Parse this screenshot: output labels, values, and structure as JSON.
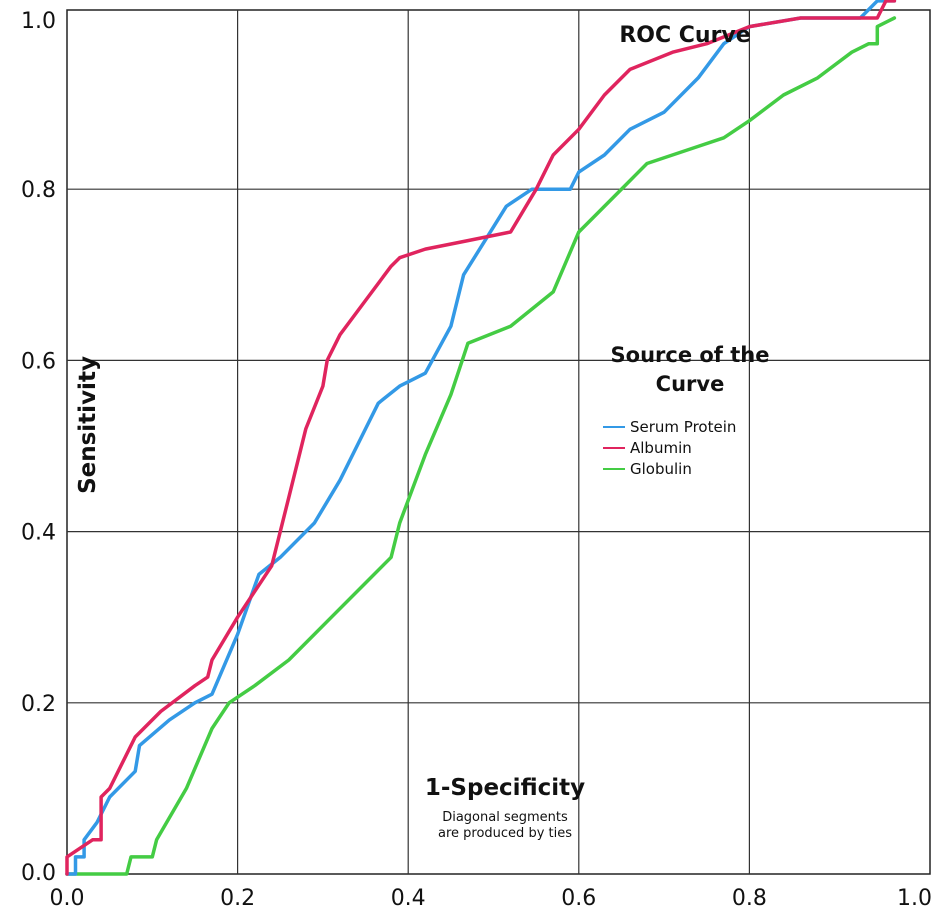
{
  "chart_data": {
    "type": "line",
    "title": "ROC Curve",
    "xlabel": "1-Specificity",
    "ylabel": "Sensitivity",
    "note_lines": [
      "Diagonal segments",
      "are produced by ties"
    ],
    "xlim": [
      0,
      1.0
    ],
    "ylim": [
      0,
      1.0
    ],
    "grid": true,
    "x_ticks": [
      {
        "value": 0.0,
        "label": "0.0"
      },
      {
        "value": 0.2,
        "label": "0.2"
      },
      {
        "value": 0.4,
        "label": "0.4"
      },
      {
        "value": 0.6,
        "label": "0.6"
      },
      {
        "value": 0.8,
        "label": "0.8"
      },
      {
        "value": 1.0,
        "label": "1.0"
      }
    ],
    "y_ticks": [
      {
        "value": 0.0,
        "label": "0.0"
      },
      {
        "value": 0.2,
        "label": "0.2"
      },
      {
        "value": 0.4,
        "label": "0.4"
      },
      {
        "value": 0.6,
        "label": "0.6"
      },
      {
        "value": 0.8,
        "label": "0.8"
      },
      {
        "value": 1.0,
        "label": "1.0"
      }
    ],
    "legend": {
      "title_lines": [
        "Source of the",
        "Curve"
      ],
      "placement": "right-middle"
    },
    "series": [
      {
        "name": "Serum Protein",
        "color": "#3399e6",
        "points": [
          [
            0.0,
            0.0
          ],
          [
            0.01,
            0.0
          ],
          [
            0.01,
            0.02
          ],
          [
            0.02,
            0.02
          ],
          [
            0.02,
            0.04
          ],
          [
            0.035,
            0.06
          ],
          [
            0.05,
            0.09
          ],
          [
            0.08,
            0.12
          ],
          [
            0.085,
            0.15
          ],
          [
            0.12,
            0.18
          ],
          [
            0.15,
            0.2
          ],
          [
            0.17,
            0.21
          ],
          [
            0.2,
            0.28
          ],
          [
            0.225,
            0.35
          ],
          [
            0.25,
            0.37
          ],
          [
            0.29,
            0.41
          ],
          [
            0.32,
            0.46
          ],
          [
            0.35,
            0.52
          ],
          [
            0.365,
            0.55
          ],
          [
            0.39,
            0.57
          ],
          [
            0.42,
            0.585
          ],
          [
            0.45,
            0.64
          ],
          [
            0.465,
            0.7
          ],
          [
            0.49,
            0.74
          ],
          [
            0.515,
            0.78
          ],
          [
            0.545,
            0.8
          ],
          [
            0.59,
            0.8
          ],
          [
            0.6,
            0.82
          ],
          [
            0.63,
            0.84
          ],
          [
            0.66,
            0.87
          ],
          [
            0.7,
            0.89
          ],
          [
            0.74,
            0.93
          ],
          [
            0.77,
            0.97
          ],
          [
            0.8,
            0.99
          ],
          [
            0.86,
            1.0
          ],
          [
            0.93,
            1.0
          ],
          [
            0.95,
            1.02
          ],
          [
            0.97,
            1.02
          ]
        ]
      },
      {
        "name": "Albumin",
        "color": "#e0245e",
        "points": [
          [
            0.0,
            0.0
          ],
          [
            0.0,
            0.02
          ],
          [
            0.03,
            0.04
          ],
          [
            0.04,
            0.04
          ],
          [
            0.04,
            0.09
          ],
          [
            0.05,
            0.1
          ],
          [
            0.08,
            0.16
          ],
          [
            0.11,
            0.19
          ],
          [
            0.15,
            0.22
          ],
          [
            0.165,
            0.23
          ],
          [
            0.17,
            0.25
          ],
          [
            0.2,
            0.3
          ],
          [
            0.24,
            0.36
          ],
          [
            0.26,
            0.44
          ],
          [
            0.28,
            0.52
          ],
          [
            0.3,
            0.57
          ],
          [
            0.305,
            0.6
          ],
          [
            0.32,
            0.63
          ],
          [
            0.35,
            0.67
          ],
          [
            0.38,
            0.71
          ],
          [
            0.39,
            0.72
          ],
          [
            0.42,
            0.73
          ],
          [
            0.47,
            0.74
          ],
          [
            0.52,
            0.75
          ],
          [
            0.55,
            0.8
          ],
          [
            0.57,
            0.84
          ],
          [
            0.6,
            0.87
          ],
          [
            0.63,
            0.91
          ],
          [
            0.66,
            0.94
          ],
          [
            0.71,
            0.96
          ],
          [
            0.75,
            0.97
          ],
          [
            0.8,
            0.99
          ],
          [
            0.86,
            1.0
          ],
          [
            0.95,
            1.0
          ],
          [
            0.96,
            1.02
          ],
          [
            0.97,
            1.02
          ]
        ]
      },
      {
        "name": "Globulin",
        "color": "#44cc44",
        "points": [
          [
            0.0,
            0.0
          ],
          [
            0.07,
            0.0
          ],
          [
            0.075,
            0.02
          ],
          [
            0.1,
            0.02
          ],
          [
            0.105,
            0.04
          ],
          [
            0.14,
            0.1
          ],
          [
            0.17,
            0.17
          ],
          [
            0.19,
            0.2
          ],
          [
            0.22,
            0.22
          ],
          [
            0.26,
            0.25
          ],
          [
            0.31,
            0.3
          ],
          [
            0.35,
            0.34
          ],
          [
            0.38,
            0.37
          ],
          [
            0.39,
            0.41
          ],
          [
            0.42,
            0.49
          ],
          [
            0.45,
            0.56
          ],
          [
            0.47,
            0.62
          ],
          [
            0.52,
            0.64
          ],
          [
            0.57,
            0.68
          ],
          [
            0.6,
            0.75
          ],
          [
            0.62,
            0.77
          ],
          [
            0.66,
            0.81
          ],
          [
            0.68,
            0.83
          ],
          [
            0.74,
            0.85
          ],
          [
            0.77,
            0.86
          ],
          [
            0.8,
            0.88
          ],
          [
            0.84,
            0.91
          ],
          [
            0.88,
            0.93
          ],
          [
            0.92,
            0.96
          ],
          [
            0.94,
            0.97
          ],
          [
            0.95,
            0.97
          ],
          [
            0.95,
            0.99
          ],
          [
            0.97,
            1.0
          ]
        ]
      }
    ]
  }
}
